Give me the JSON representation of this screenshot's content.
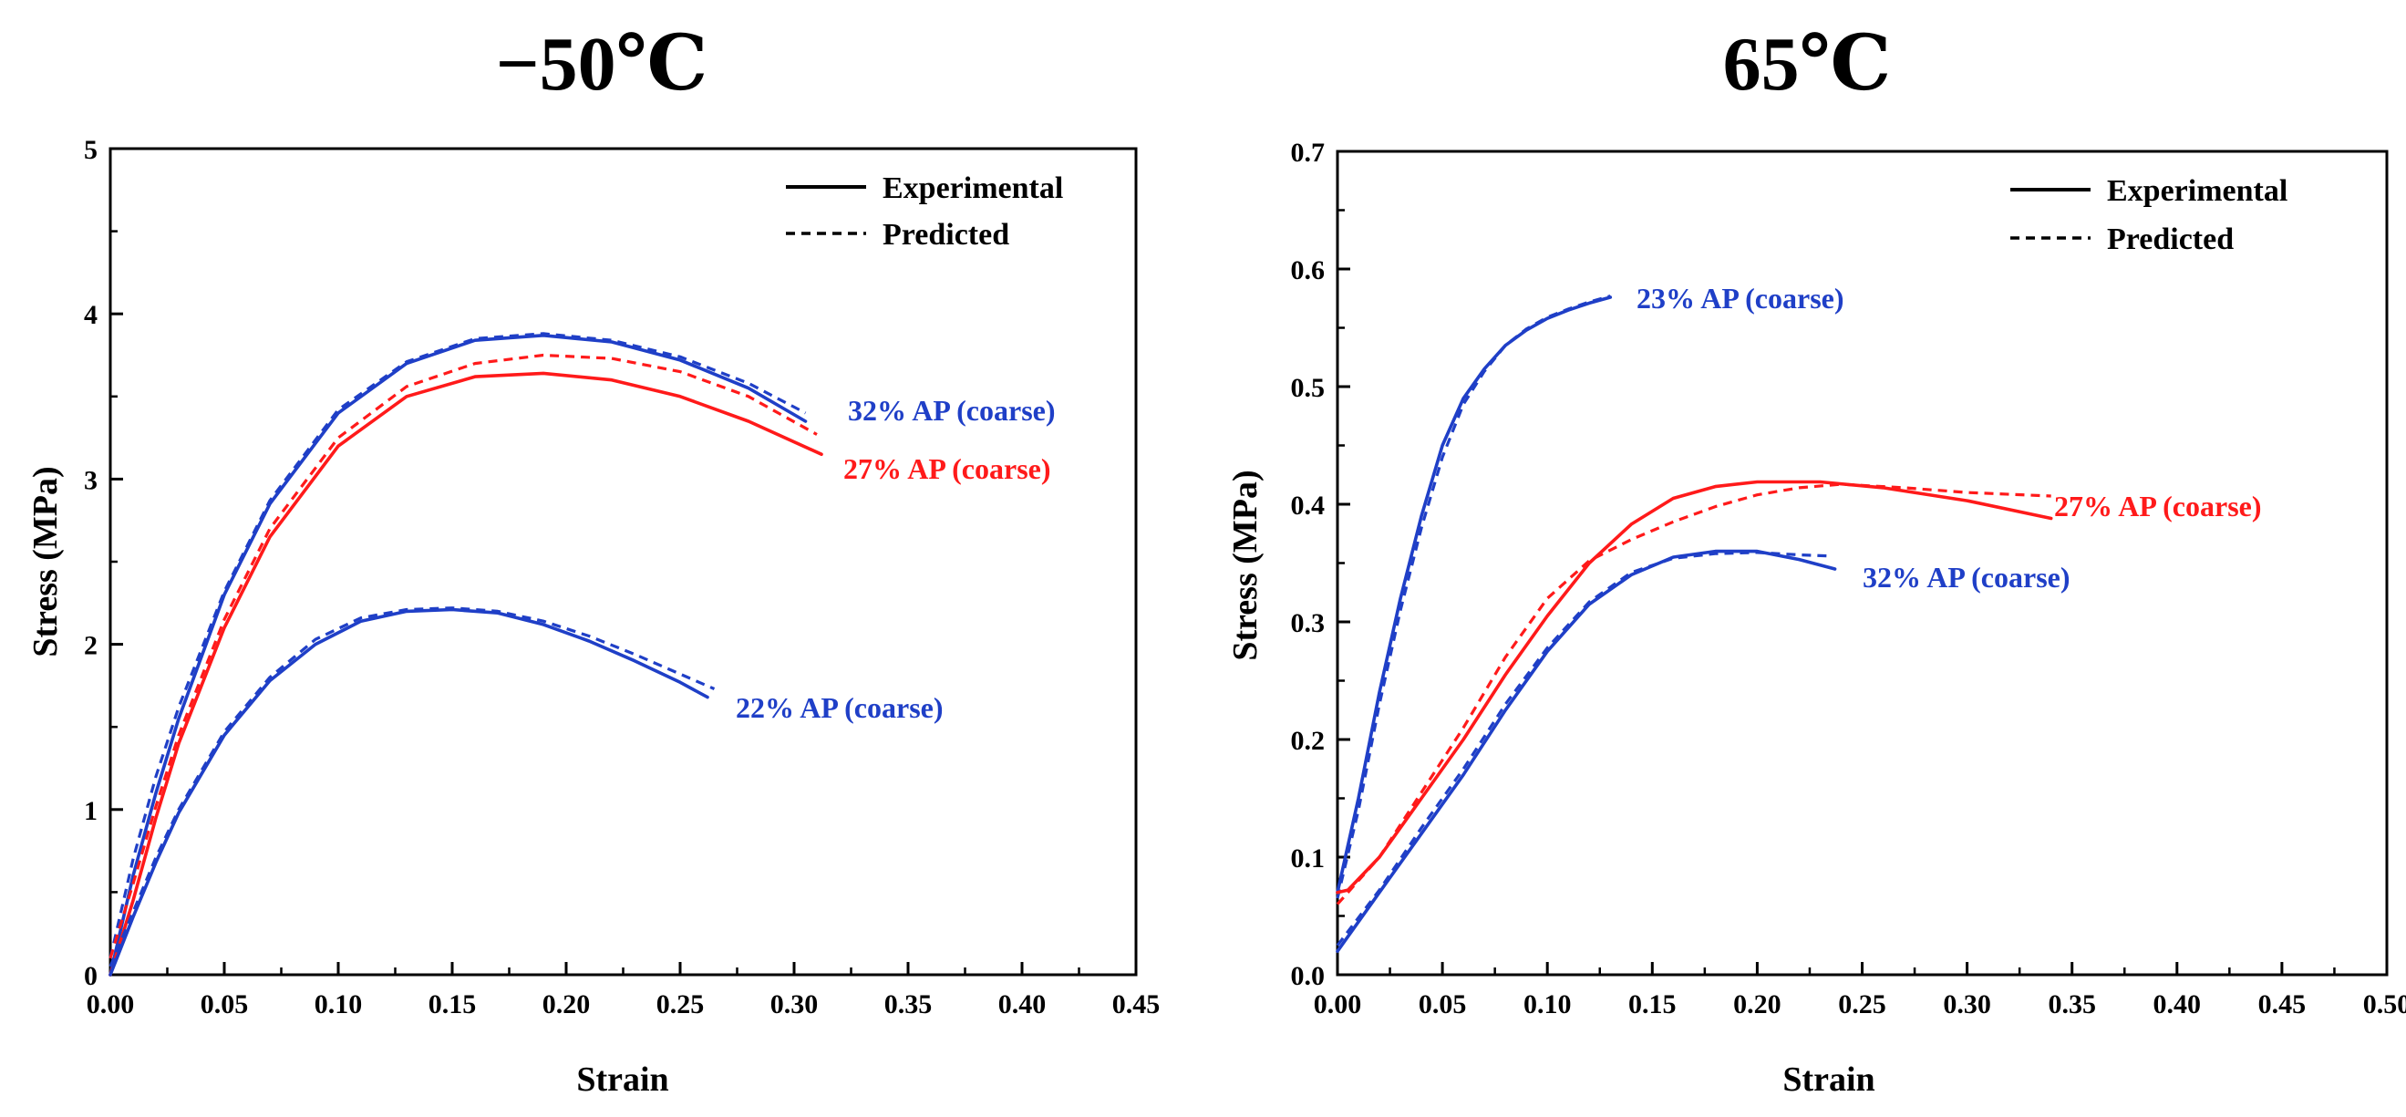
{
  "chart_data": [
    {
      "type": "line",
      "title": "−50℃",
      "xlabel": "Strain",
      "ylabel": "Stress (MPa)",
      "xlim": [
        0,
        0.45
      ],
      "ylim": [
        0,
        5
      ],
      "xticks": [
        "0.00",
        "0.05",
        "0.10",
        "0.15",
        "0.20",
        "0.25",
        "0.30",
        "0.35",
        "0.40",
        "0.45"
      ],
      "yticks": [
        "0",
        "1",
        "2",
        "3",
        "4",
        "5"
      ],
      "legend": {
        "position": "top-right",
        "entries": [
          {
            "label": "Experimental",
            "style": "solid"
          },
          {
            "label": "Predicted",
            "style": "dashed"
          }
        ]
      },
      "series": [
        {
          "name": "32% AP (coarse)",
          "label": "32% AP (coarse)",
          "color": "#1f3fc7",
          "experimental": [
            [
              0,
              0
            ],
            [
              0.01,
              0.6
            ],
            [
              0.02,
              1.1
            ],
            [
              0.03,
              1.55
            ],
            [
              0.05,
              2.3
            ],
            [
              0.07,
              2.85
            ],
            [
              0.1,
              3.4
            ],
            [
              0.13,
              3.7
            ],
            [
              0.16,
              3.84
            ],
            [
              0.19,
              3.87
            ],
            [
              0.22,
              3.83
            ],
            [
              0.25,
              3.72
            ],
            [
              0.28,
              3.55
            ],
            [
              0.305,
              3.35
            ]
          ],
          "predicted": [
            [
              0,
              0.1
            ],
            [
              0.01,
              0.7
            ],
            [
              0.02,
              1.2
            ],
            [
              0.03,
              1.62
            ],
            [
              0.05,
              2.32
            ],
            [
              0.07,
              2.87
            ],
            [
              0.1,
              3.42
            ],
            [
              0.13,
              3.71
            ],
            [
              0.16,
              3.85
            ],
            [
              0.19,
              3.88
            ],
            [
              0.22,
              3.84
            ],
            [
              0.25,
              3.74
            ],
            [
              0.28,
              3.58
            ],
            [
              0.305,
              3.4
            ]
          ]
        },
        {
          "name": "27% AP (coarse)",
          "label": "27% AP (coarse)",
          "color": "#ff1a1a",
          "experimental": [
            [
              0,
              0
            ],
            [
              0.01,
              0.45
            ],
            [
              0.02,
              0.95
            ],
            [
              0.03,
              1.4
            ],
            [
              0.05,
              2.1
            ],
            [
              0.07,
              2.65
            ],
            [
              0.1,
              3.2
            ],
            [
              0.13,
              3.5
            ],
            [
              0.16,
              3.62
            ],
            [
              0.19,
              3.64
            ],
            [
              0.22,
              3.6
            ],
            [
              0.25,
              3.5
            ],
            [
              0.28,
              3.35
            ],
            [
              0.312,
              3.15
            ]
          ],
          "predicted": [
            [
              0,
              0.1
            ],
            [
              0.01,
              0.55
            ],
            [
              0.02,
              1.02
            ],
            [
              0.03,
              1.45
            ],
            [
              0.05,
              2.15
            ],
            [
              0.07,
              2.7
            ],
            [
              0.1,
              3.25
            ],
            [
              0.13,
              3.56
            ],
            [
              0.16,
              3.7
            ],
            [
              0.19,
              3.75
            ],
            [
              0.22,
              3.73
            ],
            [
              0.25,
              3.65
            ],
            [
              0.28,
              3.5
            ],
            [
              0.31,
              3.27
            ]
          ]
        },
        {
          "name": "22% AP (coarse)",
          "label": "22% AP (coarse)",
          "color": "#1f3fc7",
          "experimental": [
            [
              0,
              0
            ],
            [
              0.01,
              0.35
            ],
            [
              0.02,
              0.68
            ],
            [
              0.03,
              0.98
            ],
            [
              0.05,
              1.45
            ],
            [
              0.07,
              1.78
            ],
            [
              0.09,
              2.0
            ],
            [
              0.11,
              2.14
            ],
            [
              0.13,
              2.2
            ],
            [
              0.15,
              2.21
            ],
            [
              0.17,
              2.19
            ],
            [
              0.19,
              2.12
            ],
            [
              0.21,
              2.02
            ],
            [
              0.23,
              1.9
            ],
            [
              0.25,
              1.77
            ],
            [
              0.262,
              1.68
            ]
          ],
          "predicted": [
            [
              0,
              0.05
            ],
            [
              0.01,
              0.38
            ],
            [
              0.02,
              0.71
            ],
            [
              0.03,
              1.0
            ],
            [
              0.05,
              1.47
            ],
            [
              0.07,
              1.8
            ],
            [
              0.09,
              2.03
            ],
            [
              0.11,
              2.16
            ],
            [
              0.13,
              2.21
            ],
            [
              0.15,
              2.22
            ],
            [
              0.17,
              2.2
            ],
            [
              0.19,
              2.14
            ],
            [
              0.21,
              2.05
            ],
            [
              0.23,
              1.94
            ],
            [
              0.25,
              1.82
            ],
            [
              0.265,
              1.73
            ]
          ]
        }
      ]
    },
    {
      "type": "line",
      "title": "65℃",
      "xlabel": "Strain",
      "ylabel": "Stress (MPa)",
      "xlim": [
        0,
        0.5
      ],
      "ylim": [
        0,
        0.7
      ],
      "xticks": [
        "0.00",
        "0.05",
        "0.10",
        "0.15",
        "0.20",
        "0.25",
        "0.30",
        "0.35",
        "0.40",
        "0.45",
        "0.50"
      ],
      "yticks": [
        "0.0",
        "0.1",
        "0.2",
        "0.3",
        "0.4",
        "0.5",
        "0.6",
        "0.7"
      ],
      "legend": {
        "position": "top-right",
        "entries": [
          {
            "label": "Experimental",
            "style": "solid"
          },
          {
            "label": "Predicted",
            "style": "dashed"
          }
        ]
      },
      "series": [
        {
          "name": "23% AP (coarse)",
          "label": "23% AP (coarse)",
          "color": "#1f3fc7",
          "experimental": [
            [
              0,
              0.07
            ],
            [
              0.01,
              0.15
            ],
            [
              0.02,
              0.24
            ],
            [
              0.03,
              0.32
            ],
            [
              0.04,
              0.39
            ],
            [
              0.05,
              0.45
            ],
            [
              0.06,
              0.49
            ],
            [
              0.07,
              0.515
            ],
            [
              0.08,
              0.535
            ],
            [
              0.09,
              0.548
            ],
            [
              0.1,
              0.558
            ],
            [
              0.11,
              0.565
            ],
            [
              0.12,
              0.571
            ],
            [
              0.13,
              0.576
            ]
          ],
          "predicted": [
            [
              0,
              0.065
            ],
            [
              0.01,
              0.14
            ],
            [
              0.02,
              0.23
            ],
            [
              0.03,
              0.31
            ],
            [
              0.04,
              0.38
            ],
            [
              0.05,
              0.44
            ],
            [
              0.06,
              0.485
            ],
            [
              0.07,
              0.513
            ],
            [
              0.08,
              0.535
            ],
            [
              0.09,
              0.549
            ],
            [
              0.1,
              0.559
            ],
            [
              0.11,
              0.566
            ],
            [
              0.12,
              0.572
            ],
            [
              0.13,
              0.577
            ]
          ]
        },
        {
          "name": "27% AP (coarse)",
          "label": "27% AP (coarse)",
          "color": "#ff1a1a",
          "experimental": [
            [
              0,
              0.07
            ],
            [
              0.005,
              0.072
            ],
            [
              0.02,
              0.1
            ],
            [
              0.04,
              0.15
            ],
            [
              0.06,
              0.2
            ],
            [
              0.08,
              0.255
            ],
            [
              0.1,
              0.305
            ],
            [
              0.12,
              0.35
            ],
            [
              0.14,
              0.383
            ],
            [
              0.16,
              0.405
            ],
            [
              0.18,
              0.415
            ],
            [
              0.2,
              0.419
            ],
            [
              0.23,
              0.419
            ],
            [
              0.26,
              0.414
            ],
            [
              0.3,
              0.403
            ],
            [
              0.34,
              0.388
            ]
          ],
          "predicted": [
            [
              0,
              0.06
            ],
            [
              0.02,
              0.1
            ],
            [
              0.04,
              0.155
            ],
            [
              0.06,
              0.21
            ],
            [
              0.08,
              0.27
            ],
            [
              0.1,
              0.32
            ],
            [
              0.12,
              0.352
            ],
            [
              0.14,
              0.37
            ],
            [
              0.16,
              0.385
            ],
            [
              0.18,
              0.398
            ],
            [
              0.2,
              0.408
            ],
            [
              0.22,
              0.414
            ],
            [
              0.24,
              0.417
            ],
            [
              0.27,
              0.414
            ],
            [
              0.3,
              0.41
            ],
            [
              0.34,
              0.407
            ]
          ]
        },
        {
          "name": "32% AP (coarse)",
          "label": "32% AP (coarse)",
          "color": "#1f3fc7",
          "experimental": [
            [
              0,
              0.02
            ],
            [
              0.02,
              0.07
            ],
            [
              0.04,
              0.12
            ],
            [
              0.06,
              0.17
            ],
            [
              0.08,
              0.225
            ],
            [
              0.1,
              0.275
            ],
            [
              0.12,
              0.315
            ],
            [
              0.14,
              0.34
            ],
            [
              0.16,
              0.355
            ],
            [
              0.18,
              0.36
            ],
            [
              0.2,
              0.36
            ],
            [
              0.22,
              0.353
            ],
            [
              0.237,
              0.345
            ]
          ],
          "predicted": [
            [
              0,
              0.025
            ],
            [
              0.02,
              0.072
            ],
            [
              0.04,
              0.125
            ],
            [
              0.06,
              0.175
            ],
            [
              0.08,
              0.23
            ],
            [
              0.1,
              0.278
            ],
            [
              0.12,
              0.317
            ],
            [
              0.14,
              0.342
            ],
            [
              0.16,
              0.354
            ],
            [
              0.18,
              0.358
            ],
            [
              0.2,
              0.359
            ],
            [
              0.22,
              0.357
            ],
            [
              0.235,
              0.356
            ]
          ]
        }
      ]
    }
  ]
}
